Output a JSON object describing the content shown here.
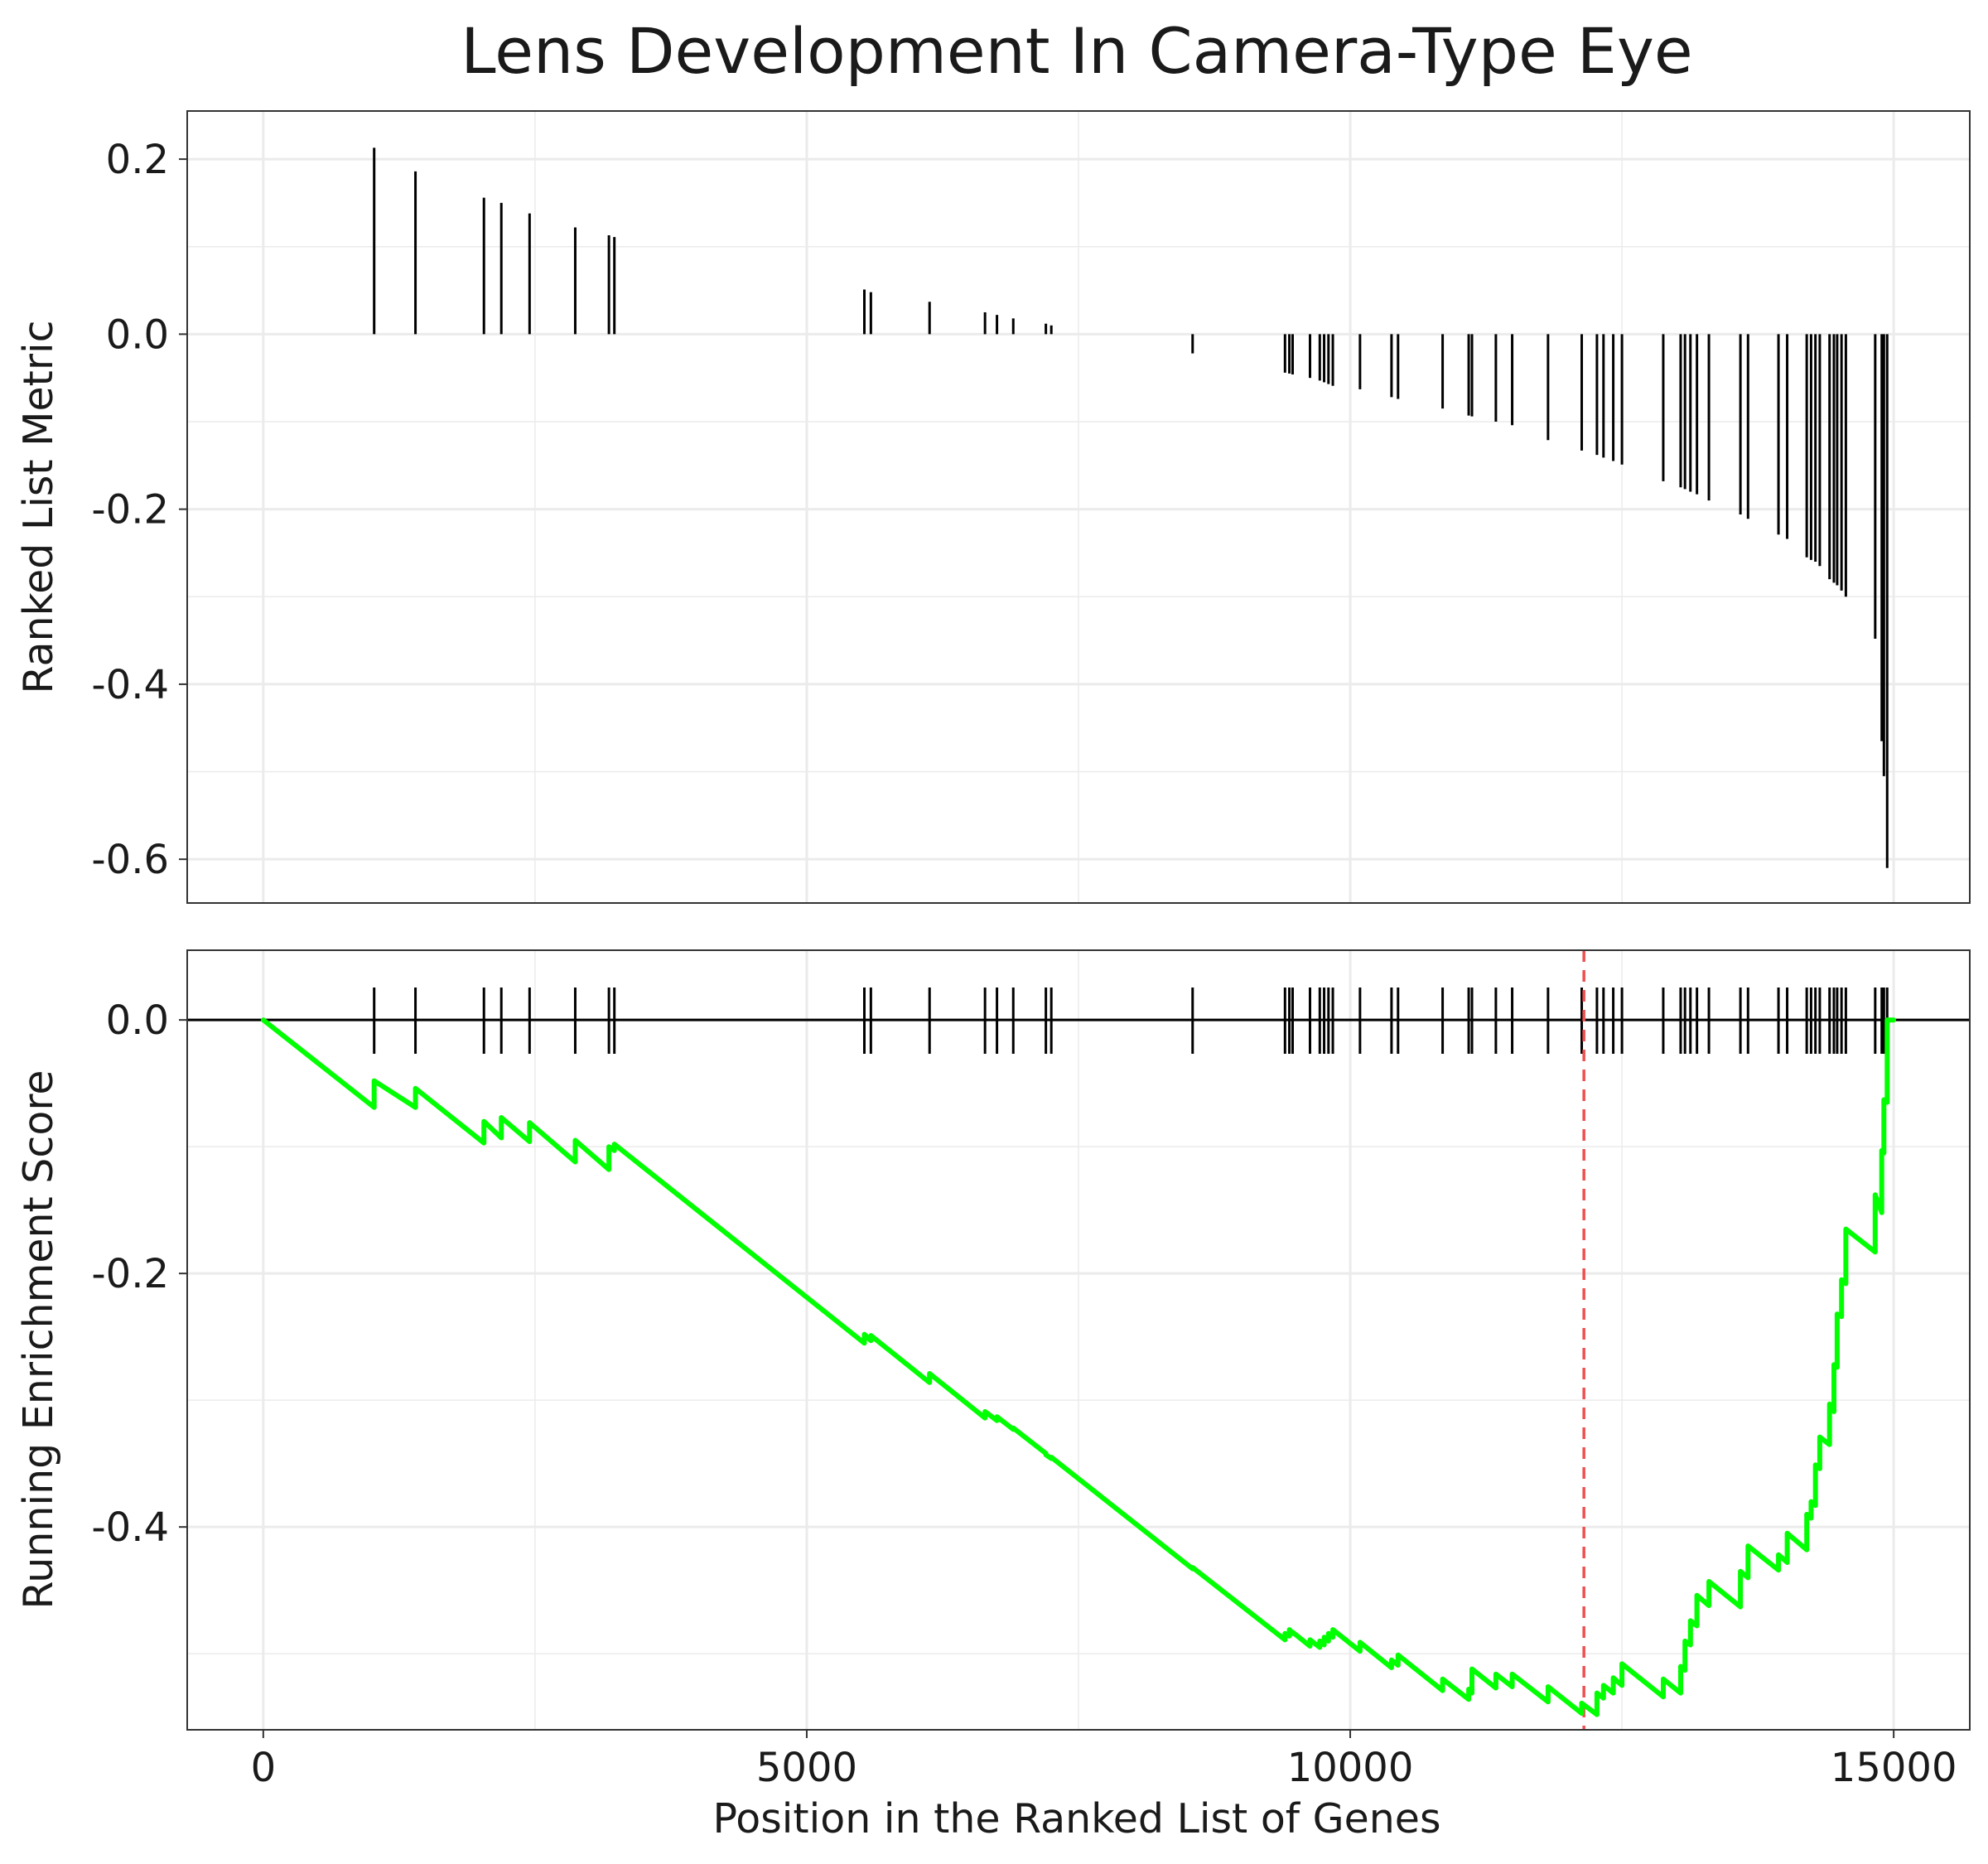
{
  "colors": {
    "running_score": "#00ff00",
    "peak_marker": "#f05050",
    "bars": "#000000",
    "grid": "#ebebeb",
    "panel_border": "#333333"
  },
  "chart_data": {
    "type": "gsea-enrichment",
    "title": "Lens Development In Camera-Type Eye",
    "xlabel": "Position in the Ranked List of Genes",
    "xlim": [
      -700,
      15700
    ],
    "x_ticks": [
      "0",
      "5000",
      "10000",
      "15000"
    ],
    "x_tick_values": [
      0,
      5000,
      10000,
      15000
    ],
    "grid": true,
    "panels": [
      {
        "name": "ranked_list_metric",
        "type": "bar",
        "ylabel": "Ranked List Metric",
        "ylim": [
          -0.65,
          0.255
        ],
        "y_ticks": [
          "0.2",
          "0.0",
          "-0.2",
          "-0.4",
          "-0.6"
        ],
        "y_tick_values": [
          0.2,
          0.0,
          -0.2,
          -0.4,
          -0.6
        ],
        "x": [
          1020,
          1400,
          2030,
          2190,
          2450,
          2870,
          3180,
          3230,
          5530,
          5590,
          6130,
          6640,
          6750,
          6900,
          7200,
          7250,
          8550,
          9400,
          9440,
          9470,
          9630,
          9720,
          9760,
          9800,
          9840,
          10090,
          10380,
          10440,
          10850,
          11090,
          11120,
          11340,
          11490,
          11820,
          12130,
          12270,
          12330,
          12420,
          12500,
          12880,
          13040,
          13080,
          13130,
          13190,
          13300,
          13590,
          13660,
          13940,
          14020,
          14200,
          14240,
          14280,
          14320,
          14410,
          14450,
          14480,
          14520,
          14560,
          14830,
          14890,
          14910,
          14940
        ],
        "values": [
          0.213,
          0.186,
          0.156,
          0.15,
          0.138,
          0.122,
          0.113,
          0.111,
          0.051,
          0.048,
          0.037,
          0.025,
          0.022,
          0.018,
          0.012,
          0.01,
          -0.022,
          -0.044,
          -0.045,
          -0.046,
          -0.05,
          -0.053,
          -0.055,
          -0.057,
          -0.059,
          -0.063,
          -0.072,
          -0.074,
          -0.085,
          -0.093,
          -0.094,
          -0.1,
          -0.104,
          -0.121,
          -0.133,
          -0.138,
          -0.141,
          -0.145,
          -0.149,
          -0.168,
          -0.175,
          -0.177,
          -0.18,
          -0.183,
          -0.19,
          -0.206,
          -0.211,
          -0.229,
          -0.234,
          -0.255,
          -0.258,
          -0.26,
          -0.265,
          -0.28,
          -0.284,
          -0.287,
          -0.293,
          -0.3,
          -0.348,
          -0.465,
          -0.505,
          -0.61
        ]
      },
      {
        "name": "running_enrichment_score",
        "type": "line",
        "ylabel": "Running Enrichment Score",
        "ylim": [
          -0.56,
          0.055
        ],
        "y_ticks": [
          "0.0",
          "-0.2",
          "-0.4"
        ],
        "y_tick_values": [
          0.0,
          -0.2,
          -0.4
        ],
        "peak_x": 12150,
        "zero_line": 0.0,
        "gene_hits_x": [
          1020,
          1400,
          2030,
          2190,
          2450,
          2870,
          3180,
          3230,
          5530,
          5590,
          6130,
          6640,
          6750,
          6900,
          7200,
          7250,
          8550,
          9400,
          9440,
          9470,
          9630,
          9720,
          9760,
          9800,
          9840,
          10090,
          10380,
          10440,
          10850,
          11090,
          11120,
          11340,
          11490,
          11820,
          12130,
          12270,
          12330,
          12420,
          12500,
          12880,
          13040,
          13080,
          13130,
          13190,
          13300,
          13590,
          13660,
          13940,
          14020,
          14200,
          14240,
          14280,
          14320,
          14410,
          14450,
          14480,
          14520,
          14560,
          14830,
          14890,
          14910,
          14940
        ],
        "series": [
          {
            "x": [
              0,
              1020,
              1020,
              1400,
              1400,
              2030,
              2030,
              2190,
              2190,
              2450,
              2450,
              2870,
              2870,
              3180,
              3180,
              3230,
              3230,
              5530,
              5530,
              5590,
              5590,
              6130,
              6130,
              6640,
              6640,
              6750,
              6750,
              6900,
              6900,
              7200,
              7200,
              7250,
              7250,
              8550,
              8550,
              9400,
              9400,
              9440,
              9440,
              9470,
              9470,
              9630,
              9630,
              9720,
              9720,
              9760,
              9760,
              9800,
              9800,
              9840,
              9840,
              10090,
              10090,
              10380,
              10380,
              10440,
              10440,
              10850,
              10850,
              11090,
              11090,
              11120,
              11120,
              11340,
              11340,
              11490,
              11490,
              11820,
              11820,
              12130,
              12130,
              12270,
              12270,
              12330,
              12330,
              12420,
              12420,
              12500,
              12500,
              12880,
              12880,
              13040,
              13040,
              13080,
              13080,
              13130,
              13130,
              13190,
              13190,
              13300,
              13300,
              13590,
              13590,
              13660,
              13660,
              13940,
              13940,
              14020,
              14020,
              14200,
              14200,
              14240,
              14240,
              14280,
              14280,
              14320,
              14320,
              14410,
              14410,
              14450,
              14450,
              14480,
              14480,
              14520,
              14520,
              14560,
              14560,
              14830,
              14830,
              14890,
              14890,
              14910,
              14910,
              14940,
              14940,
              15000
            ],
            "y": [
              0.0,
              -0.069,
              -0.048,
              -0.069,
              -0.054,
              -0.097,
              -0.08,
              -0.093,
              -0.077,
              -0.096,
              -0.081,
              -0.112,
              -0.095,
              -0.118,
              -0.1,
              -0.103,
              -0.098,
              -0.255,
              -0.248,
              -0.253,
              -0.249,
              -0.286,
              -0.279,
              -0.314,
              -0.309,
              -0.316,
              -0.313,
              -0.323,
              -0.322,
              -0.342,
              -0.343,
              -0.346,
              -0.345,
              -0.433,
              -0.432,
              -0.489,
              -0.484,
              -0.486,
              -0.481,
              -0.484,
              -0.483,
              -0.494,
              -0.489,
              -0.495,
              -0.49,
              -0.493,
              -0.487,
              -0.49,
              -0.484,
              -0.487,
              -0.481,
              -0.498,
              -0.491,
              -0.511,
              -0.505,
              -0.509,
              -0.501,
              -0.529,
              -0.52,
              -0.536,
              -0.528,
              -0.531,
              -0.512,
              -0.527,
              -0.516,
              -0.526,
              -0.516,
              -0.538,
              -0.526,
              -0.547,
              -0.539,
              -0.548,
              -0.531,
              -0.535,
              -0.525,
              -0.531,
              -0.519,
              -0.525,
              -0.508,
              -0.534,
              -0.52,
              -0.531,
              -0.51,
              -0.513,
              -0.49,
              -0.493,
              -0.474,
              -0.478,
              -0.454,
              -0.462,
              -0.443,
              -0.463,
              -0.435,
              -0.44,
              -0.415,
              -0.434,
              -0.422,
              -0.428,
              -0.405,
              -0.418,
              -0.39,
              -0.393,
              -0.38,
              -0.383,
              -0.351,
              -0.354,
              -0.329,
              -0.335,
              -0.303,
              -0.309,
              -0.272,
              -0.274,
              -0.232,
              -0.234,
              -0.205,
              -0.208,
              -0.165,
              -0.183,
              -0.138,
              -0.152,
              -0.103,
              -0.105,
              -0.063,
              -0.065,
              0.0,
              0.0
            ]
          }
        ]
      }
    ]
  }
}
